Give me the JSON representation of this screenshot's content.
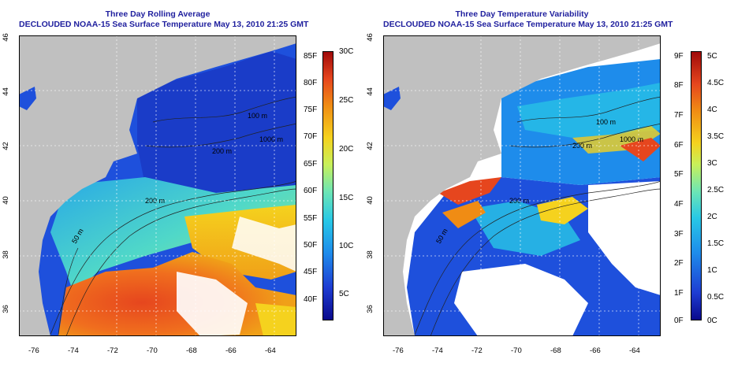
{
  "left_panel": {
    "title_line1": "Three Day Rolling Average",
    "title_line2": "DECLOUDED NOAA-15 Sea Surface Temperature May 13, 2010 21:25 GMT",
    "colorbar_f": [
      "85F",
      "80F",
      "75F",
      "70F",
      "65F",
      "60F",
      "55F",
      "50F",
      "45F",
      "40F"
    ],
    "colorbar_c": [
      "30C",
      "25C",
      "20C",
      "15C",
      "10C",
      "5C"
    ],
    "contour_labels": [
      "100 m",
      "200 m",
      "1000 m",
      "200 m",
      "50 m"
    ]
  },
  "right_panel": {
    "title_line1": "Three Day Temperature Variability",
    "title_line2": "DECLOUDED NOAA-15 Sea Surface Temperature May 13, 2010 21:25 GMT",
    "colorbar_f": [
      "9F",
      "8F",
      "7F",
      "6F",
      "5F",
      "4F",
      "3F",
      "2F",
      "1F",
      "0F"
    ],
    "colorbar_c": [
      "5C",
      "4.5C",
      "4C",
      "3.5C",
      "3C",
      "2.5C",
      "2C",
      "1.5C",
      "1C",
      "0.5C",
      "0C"
    ],
    "contour_labels": [
      "100 m",
      "200 m",
      "1000 m",
      "200 m",
      "50 m"
    ]
  },
  "axes": {
    "x_ticks": [
      "-76",
      "-74",
      "-72",
      "-70",
      "-68",
      "-66",
      "-64"
    ],
    "y_ticks": [
      "46",
      "44",
      "42",
      "40",
      "38",
      "36"
    ]
  },
  "colors": {
    "land": "#c0c0c0",
    "title": "#1f1f9e",
    "sst_scale": [
      "#0a0a8c",
      "#1e3cd2",
      "#1e8ceb",
      "#28c8e6",
      "#6ee6b4",
      "#c8f05a",
      "#f5d21e",
      "#f08c14",
      "#e6461e",
      "#a00a0a"
    ]
  }
}
